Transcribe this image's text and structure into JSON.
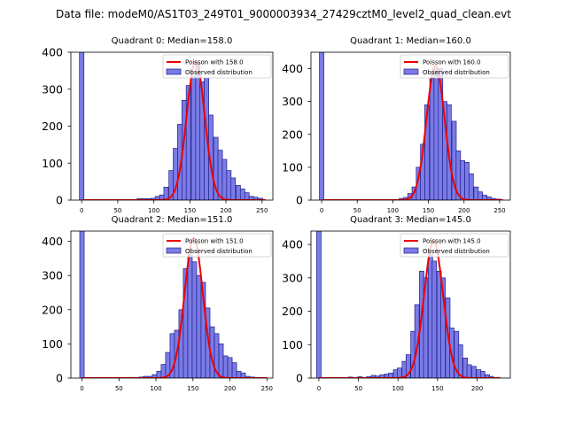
{
  "suptitle": "Data file: modeM0/AS1T03_249T01_9000003934_27429cztM0_level2_quad_clean.evt",
  "colors": {
    "bar_fill": "#7b7be6",
    "bar_edge": "#1e1e8c",
    "line": "#ee0000"
  },
  "chart_data": [
    {
      "type": "bar",
      "title": "Quadrant 0: Median=158.0",
      "xlim": [
        -15,
        265
      ],
      "ylim": [
        0,
        400
      ],
      "xticks": [
        0,
        50,
        100,
        150,
        200,
        250
      ],
      "yticks": [
        0,
        100,
        200,
        300,
        400
      ],
      "legend": {
        "position": "top-right",
        "line_label": "Poisson with 158.0",
        "bar_label": "Observed distribution"
      },
      "bin_width": 6.2,
      "histogram": [
        {
          "x": 0,
          "y": 400
        },
        {
          "x": 80,
          "y": 4
        },
        {
          "x": 86,
          "y": 4
        },
        {
          "x": 93,
          "y": 4
        },
        {
          "x": 99,
          "y": 5
        },
        {
          "x": 105,
          "y": 10
        },
        {
          "x": 111,
          "y": 14
        },
        {
          "x": 117,
          "y": 35
        },
        {
          "x": 124,
          "y": 80
        },
        {
          "x": 130,
          "y": 140
        },
        {
          "x": 136,
          "y": 205
        },
        {
          "x": 142,
          "y": 270
        },
        {
          "x": 148,
          "y": 310
        },
        {
          "x": 155,
          "y": 335
        },
        {
          "x": 161,
          "y": 370
        },
        {
          "x": 167,
          "y": 320
        },
        {
          "x": 173,
          "y": 330
        },
        {
          "x": 179,
          "y": 230
        },
        {
          "x": 186,
          "y": 170
        },
        {
          "x": 192,
          "y": 135
        },
        {
          "x": 198,
          "y": 110
        },
        {
          "x": 204,
          "y": 80
        },
        {
          "x": 210,
          "y": 60
        },
        {
          "x": 217,
          "y": 40
        },
        {
          "x": 223,
          "y": 30
        },
        {
          "x": 229,
          "y": 20
        },
        {
          "x": 235,
          "y": 10
        },
        {
          "x": 241,
          "y": 8
        },
        {
          "x": 248,
          "y": 5
        }
      ],
      "poisson": {
        "mean": 158.0,
        "peak": 375,
        "x_range": [
          0,
          255
        ]
      }
    },
    {
      "type": "bar",
      "title": "Quadrant 1: Median=160.0",
      "xlim": [
        -15,
        265
      ],
      "ylim": [
        0,
        450
      ],
      "xticks": [
        0,
        50,
        100,
        150,
        200,
        250
      ],
      "yticks": [
        0,
        100,
        200,
        300,
        400
      ],
      "legend": {
        "position": "top-right",
        "line_label": "Poisson with 160.0",
        "bar_label": "Observed distribution"
      },
      "bin_width": 6.2,
      "histogram": [
        {
          "x": 0,
          "y": 450
        },
        {
          "x": 90,
          "y": 2
        },
        {
          "x": 100,
          "y": 2
        },
        {
          "x": 112,
          "y": 5
        },
        {
          "x": 118,
          "y": 8
        },
        {
          "x": 124,
          "y": 20
        },
        {
          "x": 130,
          "y": 40
        },
        {
          "x": 136,
          "y": 100
        },
        {
          "x": 142,
          "y": 170
        },
        {
          "x": 148,
          "y": 290
        },
        {
          "x": 155,
          "y": 370
        },
        {
          "x": 161,
          "y": 400
        },
        {
          "x": 167,
          "y": 400
        },
        {
          "x": 173,
          "y": 300
        },
        {
          "x": 179,
          "y": 290
        },
        {
          "x": 186,
          "y": 240
        },
        {
          "x": 192,
          "y": 150
        },
        {
          "x": 198,
          "y": 120
        },
        {
          "x": 204,
          "y": 115
        },
        {
          "x": 210,
          "y": 80
        },
        {
          "x": 217,
          "y": 40
        },
        {
          "x": 223,
          "y": 25
        },
        {
          "x": 229,
          "y": 15
        },
        {
          "x": 235,
          "y": 10
        },
        {
          "x": 241,
          "y": 5
        },
        {
          "x": 248,
          "y": 3
        }
      ],
      "poisson": {
        "mean": 160.0,
        "peak": 410,
        "x_range": [
          0,
          255
        ]
      }
    },
    {
      "type": "bar",
      "title": "Quadrant 2: Median=151.0",
      "xlim": [
        -15,
        258
      ],
      "ylim": [
        0,
        430
      ],
      "xticks": [
        0,
        50,
        100,
        150,
        200,
        250
      ],
      "yticks": [
        0,
        100,
        200,
        300,
        400
      ],
      "legend": {
        "position": "top-right",
        "line_label": "Poisson with 151.0",
        "bar_label": "Observed distribution"
      },
      "bin_width": 6.0,
      "histogram": [
        {
          "x": 0,
          "y": 430
        },
        {
          "x": 80,
          "y": 3
        },
        {
          "x": 86,
          "y": 5
        },
        {
          "x": 92,
          "y": 5
        },
        {
          "x": 98,
          "y": 10
        },
        {
          "x": 104,
          "y": 20
        },
        {
          "x": 110,
          "y": 40
        },
        {
          "x": 116,
          "y": 75
        },
        {
          "x": 122,
          "y": 130
        },
        {
          "x": 128,
          "y": 140
        },
        {
          "x": 134,
          "y": 200
        },
        {
          "x": 140,
          "y": 320
        },
        {
          "x": 146,
          "y": 360
        },
        {
          "x": 152,
          "y": 340
        },
        {
          "x": 158,
          "y": 300
        },
        {
          "x": 164,
          "y": 280
        },
        {
          "x": 170,
          "y": 205
        },
        {
          "x": 176,
          "y": 150
        },
        {
          "x": 182,
          "y": 130
        },
        {
          "x": 188,
          "y": 100
        },
        {
          "x": 194,
          "y": 65
        },
        {
          "x": 200,
          "y": 60
        },
        {
          "x": 206,
          "y": 45
        },
        {
          "x": 212,
          "y": 20
        },
        {
          "x": 218,
          "y": 15
        },
        {
          "x": 224,
          "y": 5
        },
        {
          "x": 230,
          "y": 3
        },
        {
          "x": 236,
          "y": 2
        }
      ],
      "poisson": {
        "mean": 151.0,
        "peak": 410,
        "x_range": [
          0,
          250
        ]
      }
    },
    {
      "type": "bar",
      "title": "Quadrant 3: Median=145.0",
      "xlim": [
        -10,
        242
      ],
      "ylim": [
        0,
        440
      ],
      "xticks": [
        0,
        50,
        100,
        150,
        200
      ],
      "yticks": [
        0,
        100,
        200,
        300,
        400
      ],
      "legend": {
        "position": "top-right",
        "line_label": "Poisson with 145.0",
        "bar_label": "Observed distribution"
      },
      "bin_width": 5.6,
      "histogram": [
        {
          "x": 0,
          "y": 440
        },
        {
          "x": 40,
          "y": 3
        },
        {
          "x": 52,
          "y": 4
        },
        {
          "x": 63,
          "y": 4
        },
        {
          "x": 69,
          "y": 8
        },
        {
          "x": 74,
          "y": 6
        },
        {
          "x": 80,
          "y": 10
        },
        {
          "x": 86,
          "y": 12
        },
        {
          "x": 91,
          "y": 15
        },
        {
          "x": 97,
          "y": 25
        },
        {
          "x": 102,
          "y": 30
        },
        {
          "x": 108,
          "y": 50
        },
        {
          "x": 113,
          "y": 70
        },
        {
          "x": 119,
          "y": 140
        },
        {
          "x": 124,
          "y": 220
        },
        {
          "x": 130,
          "y": 320
        },
        {
          "x": 135,
          "y": 300
        },
        {
          "x": 141,
          "y": 370
        },
        {
          "x": 146,
          "y": 350
        },
        {
          "x": 152,
          "y": 320
        },
        {
          "x": 157,
          "y": 300
        },
        {
          "x": 163,
          "y": 240
        },
        {
          "x": 168,
          "y": 150
        },
        {
          "x": 174,
          "y": 140
        },
        {
          "x": 179,
          "y": 100
        },
        {
          "x": 185,
          "y": 60
        },
        {
          "x": 190,
          "y": 40
        },
        {
          "x": 196,
          "y": 35
        },
        {
          "x": 202,
          "y": 25
        },
        {
          "x": 207,
          "y": 20
        },
        {
          "x": 213,
          "y": 10
        },
        {
          "x": 218,
          "y": 5
        }
      ],
      "poisson": {
        "mean": 145.0,
        "peak": 410,
        "x_range": [
          0,
          230
        ]
      }
    }
  ]
}
